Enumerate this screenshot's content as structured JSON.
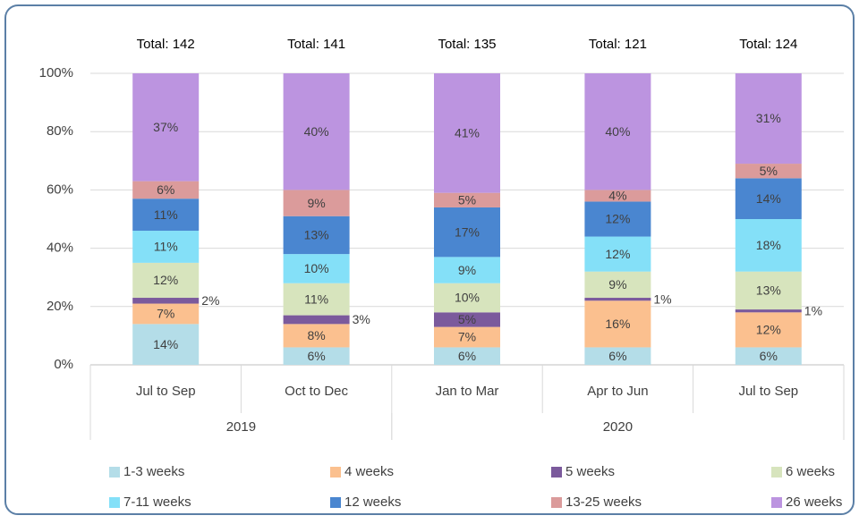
{
  "chart_data": {
    "type": "stacked_bar",
    "annotations": [
      "Total: 142",
      "Total: 141",
      "Total: 135",
      "Total: 121",
      "Total: 124"
    ],
    "groups": [
      {
        "name": "2019",
        "categories": [
          "Jul to Sep",
          "Oct to Dec"
        ]
      },
      {
        "name": "2020",
        "categories": [
          "Jan to Mar",
          "Apr to Jun",
          "Jul to Sep"
        ]
      }
    ],
    "ylim": [
      0,
      100
    ],
    "yticks": [
      {
        "value": 0,
        "label": "0%"
      },
      {
        "value": 20,
        "label": "20%"
      },
      {
        "value": 40,
        "label": "40%"
      },
      {
        "value": 60,
        "label": "60%"
      },
      {
        "value": 80,
        "label": "80%"
      },
      {
        "value": 100,
        "label": "100%"
      }
    ],
    "grid": true,
    "legend": "bottom",
    "series": [
      {
        "name": "1-3 weeks",
        "color": "#b4dde8",
        "values": [
          14,
          6,
          6,
          6,
          6
        ],
        "value_labels": [
          "14%",
          "6%",
          "6%",
          "6%",
          "6%"
        ]
      },
      {
        "name": "4 weeks",
        "color": "#fbc08f",
        "values": [
          7,
          8,
          7,
          16,
          12
        ],
        "value_labels": [
          "7%",
          "8%",
          "7%",
          "16%",
          "12%"
        ]
      },
      {
        "name": "5 weeks",
        "color": "#7b5a9c",
        "values": [
          2,
          3,
          5,
          1,
          1
        ],
        "value_labels": [
          "2%",
          "3%",
          "5%",
          "1%",
          "1%"
        ]
      },
      {
        "name": "6 weeks",
        "color": "#d7e4bd",
        "values": [
          12,
          11,
          10,
          9,
          13
        ],
        "value_labels": [
          "12%",
          "11%",
          "10%",
          "9%",
          "13%"
        ]
      },
      {
        "name": "7-11 weeks",
        "color": "#84e0f8",
        "values": [
          11,
          10,
          9,
          12,
          18
        ],
        "value_labels": [
          "11%",
          "10%",
          "9%",
          "12%",
          "18%"
        ]
      },
      {
        "name": "12 weeks",
        "color": "#4a86d0",
        "values": [
          11,
          13,
          17,
          12,
          14
        ],
        "value_labels": [
          "11%",
          "13%",
          "17%",
          "12%",
          "14%"
        ]
      },
      {
        "name": "13-25 weeks",
        "color": "#db9b9b",
        "values": [
          6,
          9,
          5,
          4,
          5
        ],
        "value_labels": [
          "6%",
          "9%",
          "5%",
          "4%",
          "5%"
        ]
      },
      {
        "name": "26 weeks",
        "color": "#bc94e0",
        "values": [
          37,
          40,
          41,
          40,
          31
        ],
        "value_labels": [
          "37%",
          "40%",
          "41%",
          "40%",
          "31%"
        ]
      }
    ]
  }
}
